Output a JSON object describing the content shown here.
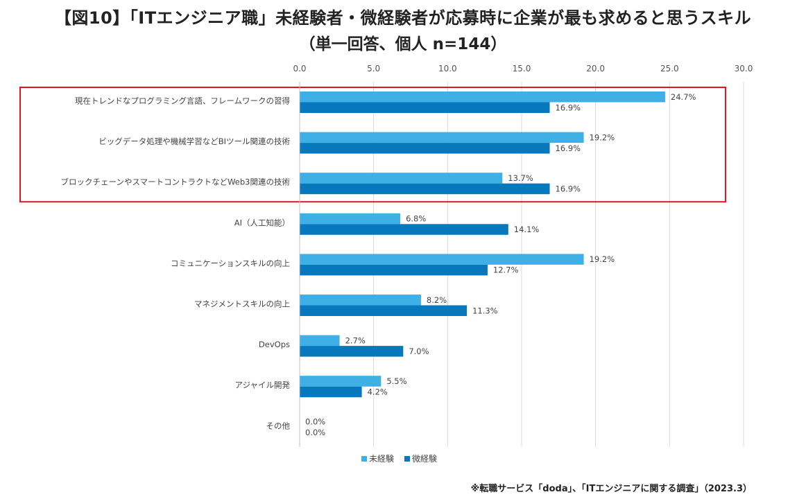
{
  "title": {
    "line1": "【図10】「ITエンジニア職」未経験者・微経験者が応募時に企業が最も求めると思うスキル",
    "line2": "（単一回答、個人 n=144）"
  },
  "source_note": "※転職サービス「doda」、「ITエンジニアに関する調査」（2023.3）",
  "colors": {
    "series1": "#3fb0e6",
    "series2": "#0878bc",
    "highlight_box": "#e0141e",
    "grid": "#d9d9d9"
  },
  "chart_data": {
    "type": "bar",
    "orientation": "horizontal",
    "title": "「ITエンジニア職」未経験者・微経験者が応募時に企業が最も求めると思うスキル",
    "xlabel": "",
    "ylabel": "",
    "xlim": [
      0,
      30
    ],
    "ticks": [
      "0.0",
      "5.0",
      "10.0",
      "15.0",
      "20.0",
      "25.0",
      "30.0"
    ],
    "tick_values": [
      0,
      5,
      10,
      15,
      20,
      25,
      30
    ],
    "grid": true,
    "legend_position": "bottom",
    "categories": [
      "現在トレンドなプログラミング言語、フレームワークの習得",
      "ビッグデータ処理や機械学習などBIツール関連の技術",
      "ブロックチェーンやスマートコントラクトなどWeb3関連の技術",
      "AI（人工知能）",
      "コミュニケーションスキルの向上",
      "マネジメントスキルの向上",
      "DevOps",
      "アジャイル開発",
      "その他"
    ],
    "series": [
      {
        "name": "未経験",
        "values": [
          24.7,
          19.2,
          13.7,
          6.8,
          19.2,
          8.2,
          2.7,
          5.5,
          0.0
        ],
        "labels": [
          "24.7%",
          "19.2%",
          "13.7%",
          "6.8%",
          "19.2%",
          "8.2%",
          "2.7%",
          "5.5%",
          "0.0%"
        ]
      },
      {
        "name": "微経験",
        "values": [
          16.9,
          16.9,
          16.9,
          14.1,
          12.7,
          11.3,
          7.0,
          4.2,
          0.0
        ],
        "labels": [
          "16.9%",
          "16.9%",
          "16.9%",
          "14.1%",
          "12.7%",
          "11.3%",
          "7.0%",
          "4.2%",
          "0.0%"
        ]
      }
    ],
    "highlighted_categories": [
      0,
      1,
      2
    ]
  }
}
